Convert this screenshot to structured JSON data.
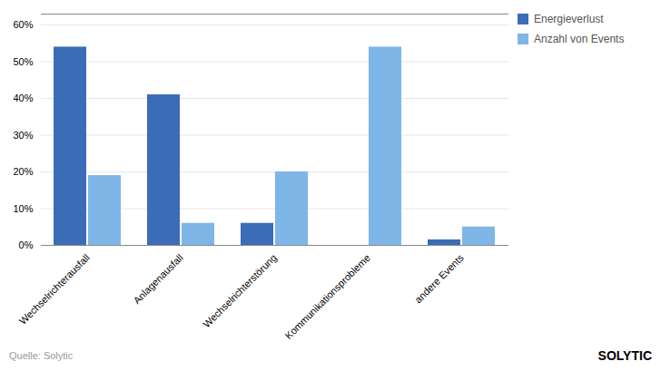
{
  "chart_data": {
    "type": "bar",
    "categories": [
      "Wechselrichterausfall",
      "Anlagenausfall",
      "Wechselrichterstörung",
      "Kommunikationsprobleme",
      "andere Events"
    ],
    "series": [
      {
        "name": "Energieverlust",
        "color": "#3B6CB7",
        "values": [
          0.54,
          0.41,
          0.06,
          0.0,
          0.015
        ]
      },
      {
        "name": "Anzahl von Events",
        "color": "#7EB6E8",
        "values": [
          0.19,
          0.06,
          0.2,
          0.54,
          0.05
        ]
      }
    ],
    "ylim": [
      0,
      0.63
    ],
    "yticks": [
      {
        "value": 0.0,
        "label": "0%"
      },
      {
        "value": 0.1,
        "label": "10%"
      },
      {
        "value": 0.2,
        "label": "20%"
      },
      {
        "value": 0.3,
        "label": "30%"
      },
      {
        "value": 0.4,
        "label": "40%"
      },
      {
        "value": 0.5,
        "label": "50%"
      },
      {
        "value": 0.6,
        "label": "60%"
      }
    ],
    "grid": true,
    "legend": "right",
    "annotations": [
      "Quelle: Solytic",
      "SOLYTIC"
    ]
  }
}
